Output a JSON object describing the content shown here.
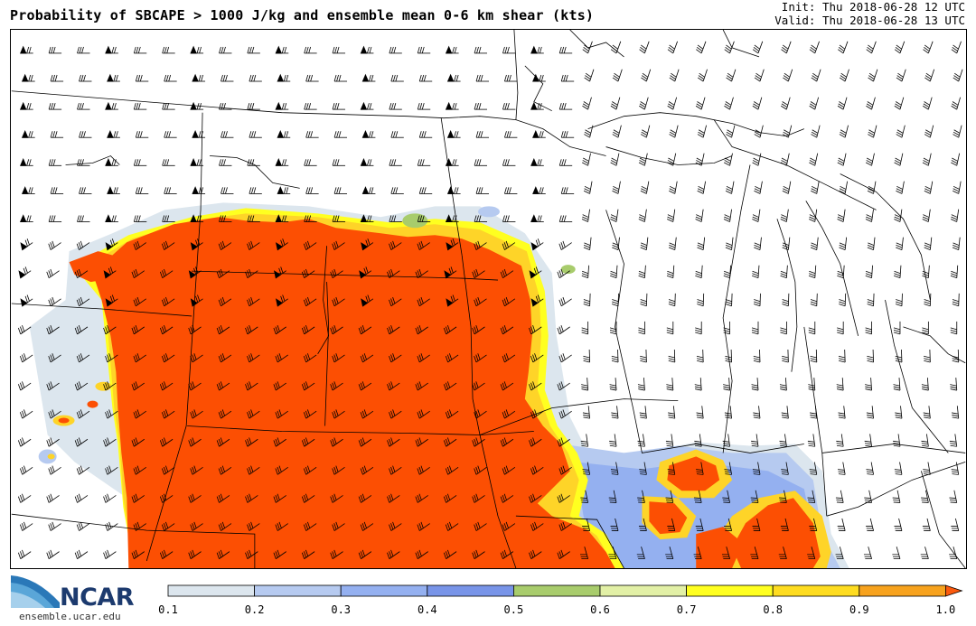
{
  "header": {
    "title": "Probability of SBCAPE > 1000 J/kg and ensemble mean 0-6 km shear (kts)",
    "init": "Init: Thu 2018-06-28 12 UTC",
    "valid": "Valid: Thu 2018-06-28 13 UTC"
  },
  "branding": {
    "logo_text": "NCAR",
    "url": "ensemble.ucar.edu"
  },
  "colorbar": {
    "ticks": [
      "0.1",
      "0.2",
      "0.3",
      "0.4",
      "0.5",
      "0.6",
      "0.7",
      "0.8",
      "0.9",
      "1.0"
    ],
    "colors": [
      "#dce6ee",
      "#b6caf0",
      "#94b0f0",
      "#7894e8",
      "#a8cc6c",
      "#e2f0a6",
      "#ffff20",
      "#fedc20",
      "#f7a21d"
    ],
    "overflow_color": "#fb5a0e"
  },
  "colors": {
    "high_probability": "#fc4f03",
    "orange": "#f79a1b",
    "gold": "#fed428",
    "yellow": "#ffff20",
    "light_green": "#e2f0a6",
    "green": "#a8cc6c",
    "blue": "#7894e8",
    "light_blue": "#b6caf0",
    "pale_blue": "#dce6ee"
  }
}
